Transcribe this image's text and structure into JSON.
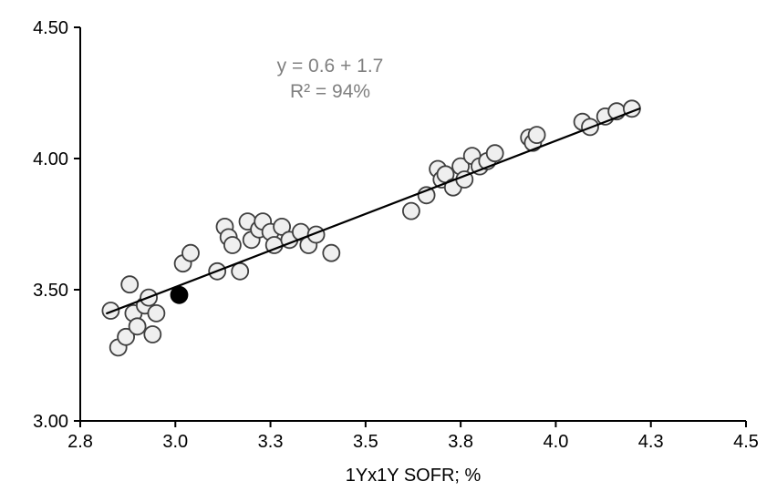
{
  "chart_data": {
    "type": "scatter",
    "title": "",
    "xlabel": "1Yx1Y SOFR; %",
    "ylabel": "",
    "xlim": [
      2.75,
      4.5
    ],
    "ylim": [
      3.0,
      4.5
    ],
    "grid": false,
    "legend": "none",
    "x_ticks": [
      {
        "value": 2.75,
        "label": "2.8"
      },
      {
        "value": 3.0,
        "label": "3.0"
      },
      {
        "value": 3.25,
        "label": "3.3"
      },
      {
        "value": 3.5,
        "label": "3.5"
      },
      {
        "value": 3.75,
        "label": "3.8"
      },
      {
        "value": 4.0,
        "label": "4.0"
      },
      {
        "value": 4.25,
        "label": "4.3"
      },
      {
        "value": 4.5,
        "label": "4.5"
      }
    ],
    "y_ticks": [
      {
        "value": 3.0,
        "label": "3.00"
      },
      {
        "value": 3.5,
        "label": "3.50"
      },
      {
        "value": 4.0,
        "label": "4.00"
      },
      {
        "value": 4.5,
        "label": "4.50"
      }
    ],
    "annotation": {
      "equation": "y = 0.6 + 1.7",
      "r_squared": "R² = 94%"
    },
    "points": [
      [
        2.83,
        3.42
      ],
      [
        2.85,
        3.28
      ],
      [
        2.87,
        3.32
      ],
      [
        2.88,
        3.52
      ],
      [
        2.89,
        3.41
      ],
      [
        2.9,
        3.36
      ],
      [
        2.92,
        3.44
      ],
      [
        2.93,
        3.47
      ],
      [
        2.94,
        3.33
      ],
      [
        2.95,
        3.41
      ],
      [
        3.02,
        3.6
      ],
      [
        3.04,
        3.64
      ],
      [
        3.11,
        3.57
      ],
      [
        3.13,
        3.74
      ],
      [
        3.14,
        3.7
      ],
      [
        3.15,
        3.67
      ],
      [
        3.17,
        3.57
      ],
      [
        3.19,
        3.76
      ],
      [
        3.2,
        3.69
      ],
      [
        3.22,
        3.73
      ],
      [
        3.23,
        3.76
      ],
      [
        3.25,
        3.72
      ],
      [
        3.26,
        3.67
      ],
      [
        3.28,
        3.74
      ],
      [
        3.3,
        3.69
      ],
      [
        3.33,
        3.72
      ],
      [
        3.35,
        3.67
      ],
      [
        3.37,
        3.71
      ],
      [
        3.41,
        3.64
      ],
      [
        3.62,
        3.8
      ],
      [
        3.66,
        3.86
      ],
      [
        3.69,
        3.96
      ],
      [
        3.7,
        3.92
      ],
      [
        3.71,
        3.94
      ],
      [
        3.73,
        3.89
      ],
      [
        3.75,
        3.97
      ],
      [
        3.76,
        3.92
      ],
      [
        3.78,
        4.01
      ],
      [
        3.8,
        3.97
      ],
      [
        3.82,
        3.99
      ],
      [
        3.84,
        4.02
      ],
      [
        3.93,
        4.08
      ],
      [
        3.94,
        4.06
      ],
      [
        3.95,
        4.09
      ],
      [
        4.07,
        4.14
      ],
      [
        4.09,
        4.12
      ],
      [
        4.13,
        4.16
      ],
      [
        4.16,
        4.18
      ],
      [
        4.2,
        4.19
      ]
    ],
    "highlight_point": [
      3.01,
      3.48
    ],
    "trendline": {
      "x1": 2.82,
      "y1": 3.41,
      "x2": 4.22,
      "y2": 4.19
    },
    "colors": {
      "point_fill": "#efefef",
      "point_stroke": "#3f3f3f",
      "highlight_fill": "#000000",
      "highlight_stroke": "#000000",
      "trendline": "#000000",
      "axis": "#000000",
      "annotation": "#808080"
    }
  }
}
